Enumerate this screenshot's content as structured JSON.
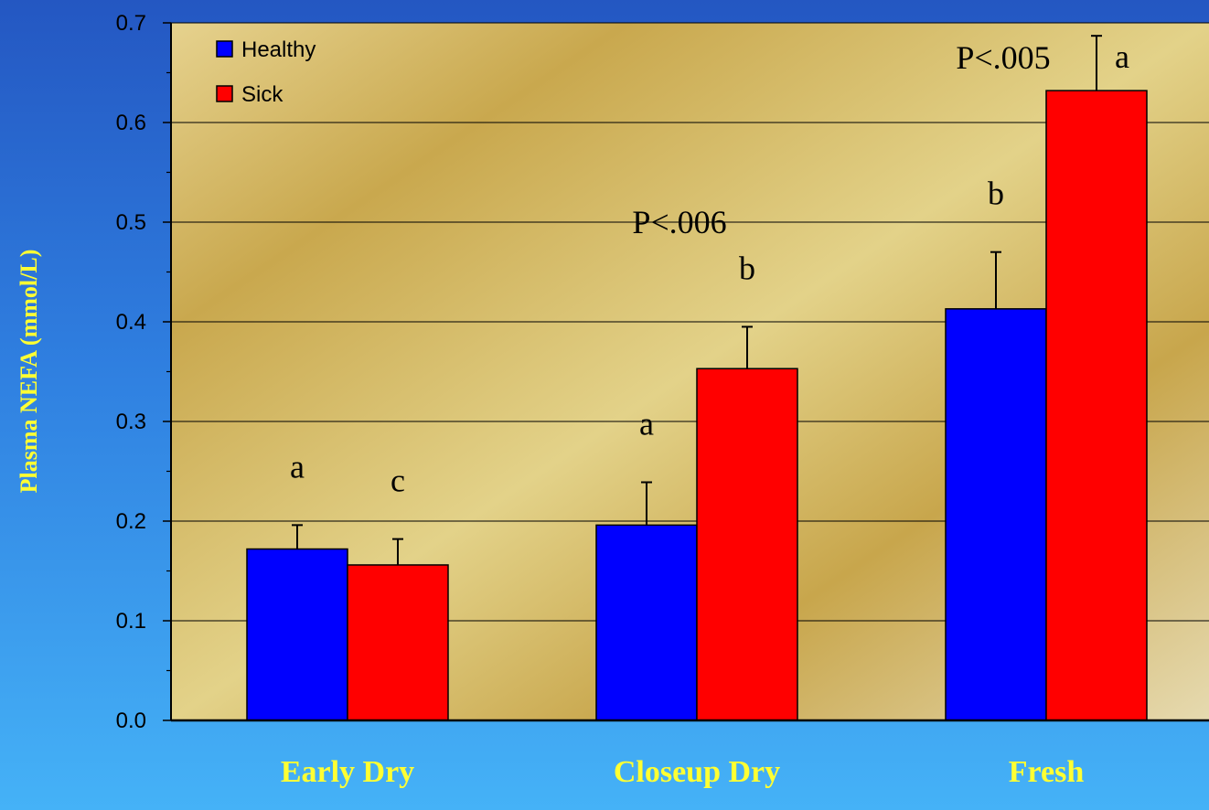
{
  "colors": {
    "background": "#2f7fe0",
    "plot_area": "#d8bc68",
    "healthy": "#0000ff",
    "sick": "#ff0000",
    "category_label": "#ffff33"
  },
  "chart_data": {
    "type": "bar",
    "categories": [
      "Early Dry",
      "Closeup Dry",
      "Fresh"
    ],
    "series": [
      {
        "name": "Healthy",
        "values": [
          0.172,
          0.196,
          0.413
        ],
        "errors": [
          0.024,
          0.043,
          0.057
        ],
        "letters": [
          "a",
          "a",
          "b"
        ]
      },
      {
        "name": "Sick",
        "values": [
          0.156,
          0.353,
          0.632
        ],
        "errors": [
          0.026,
          0.042,
          0.055
        ],
        "letters": [
          "c",
          "b",
          "a"
        ]
      }
    ],
    "ylabel": "Plasma NEFA (mmol/L)",
    "xlabel": "",
    "ylim": [
      0,
      0.7
    ],
    "yticks": [
      "0.0",
      "0.1",
      "0.2",
      "0.3",
      "0.4",
      "0.5",
      "0.6",
      "0.7"
    ],
    "grid": true,
    "legend": "top-left",
    "annotations": [
      {
        "text": "P<.006",
        "category": 1,
        "y": 0.5
      },
      {
        "text": "P<.005",
        "category": 2,
        "y": 0.665
      }
    ]
  }
}
